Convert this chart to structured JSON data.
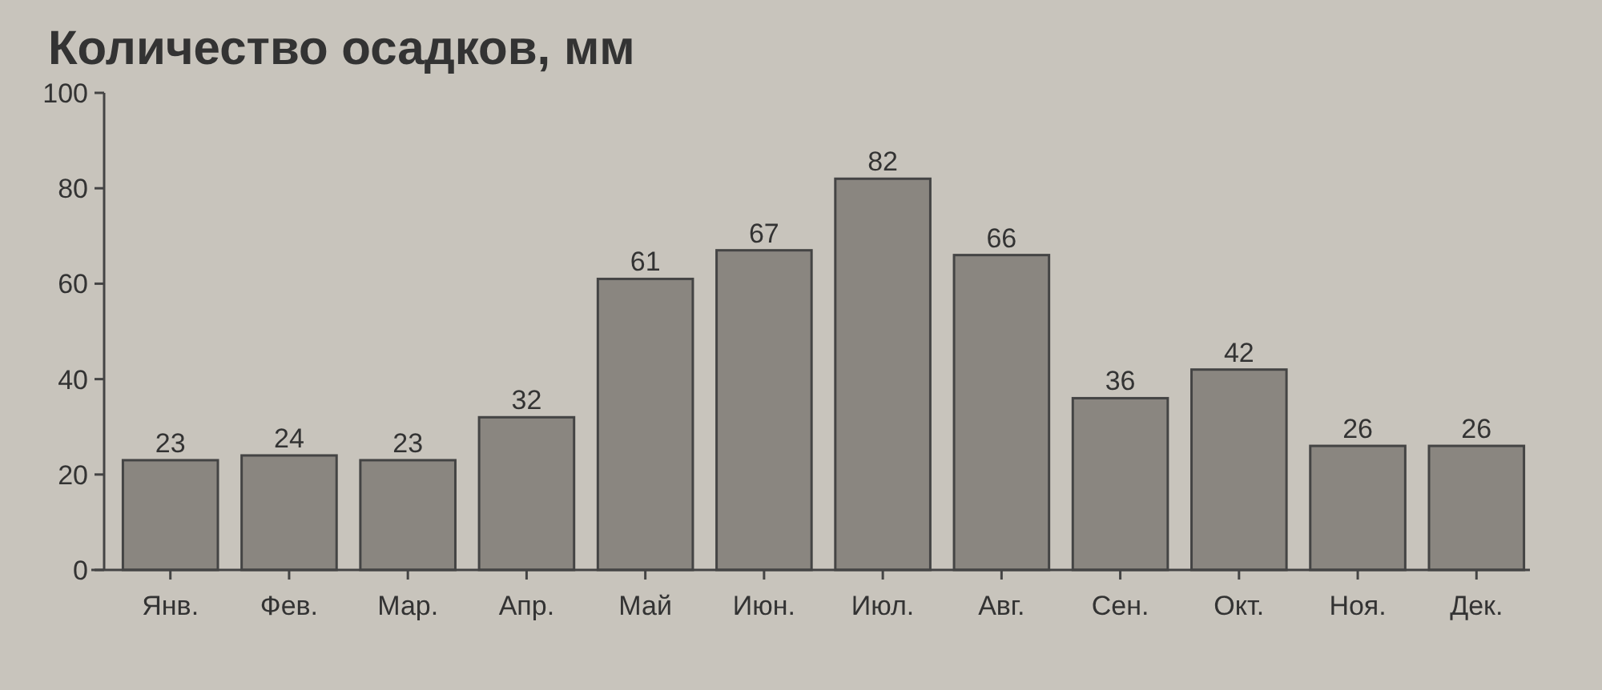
{
  "chart_data": {
    "type": "bar",
    "title": "Количество осадков, мм",
    "categories": [
      "Янв.",
      "Фев.",
      "Мар.",
      "Апр.",
      "Май",
      "Июн.",
      "Июл.",
      "Авг.",
      "Сен.",
      "Окт.",
      "Ноя.",
      "Дек."
    ],
    "values": [
      23,
      24,
      23,
      32,
      61,
      67,
      82,
      66,
      36,
      42,
      26,
      26
    ],
    "color": "#8a8680",
    "ylim": [
      0,
      100
    ],
    "yticks": [
      0,
      20,
      40,
      60,
      80,
      100
    ],
    "data_labels": true
  }
}
